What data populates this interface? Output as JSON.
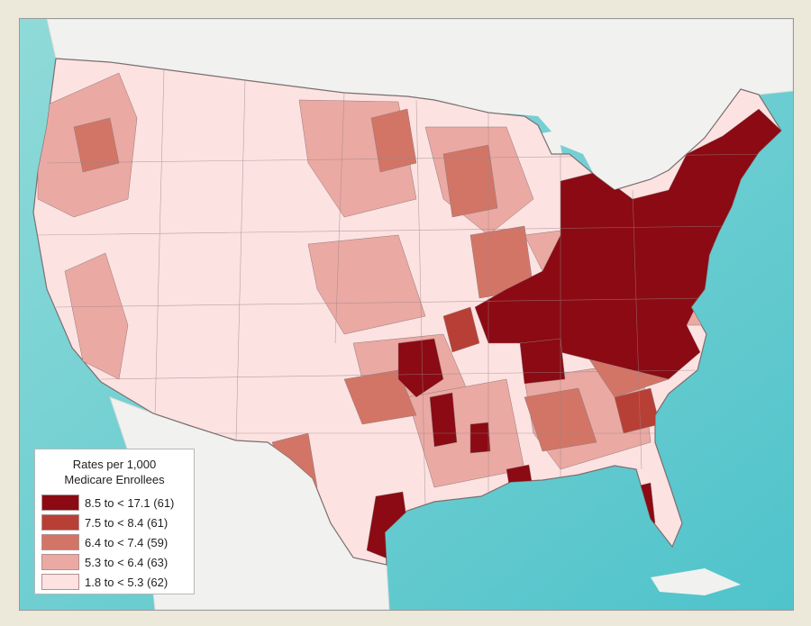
{
  "legend": {
    "title_line1": "Rates per 1,000",
    "title_line2": "Medicare Enrollees",
    "items": [
      {
        "label": "8.5 to < 17.1 (61)",
        "color": "#8b0a13"
      },
      {
        "label": "7.5 to < 8.4 (61)",
        "color": "#b83f35"
      },
      {
        "label": "6.4 to < 7.4 (59)",
        "color": "#d27566"
      },
      {
        "label": "5.3 to < 6.4 (63)",
        "color": "#eba9a3"
      },
      {
        "label": "1.8 to < 5.3 (62)",
        "color": "#fde2e2"
      }
    ]
  },
  "colors": {
    "frame_background": "#ece8da",
    "ocean": "#67cbd0",
    "land_outside": "#f1f1ef",
    "borders": "#7b6f6f"
  }
}
